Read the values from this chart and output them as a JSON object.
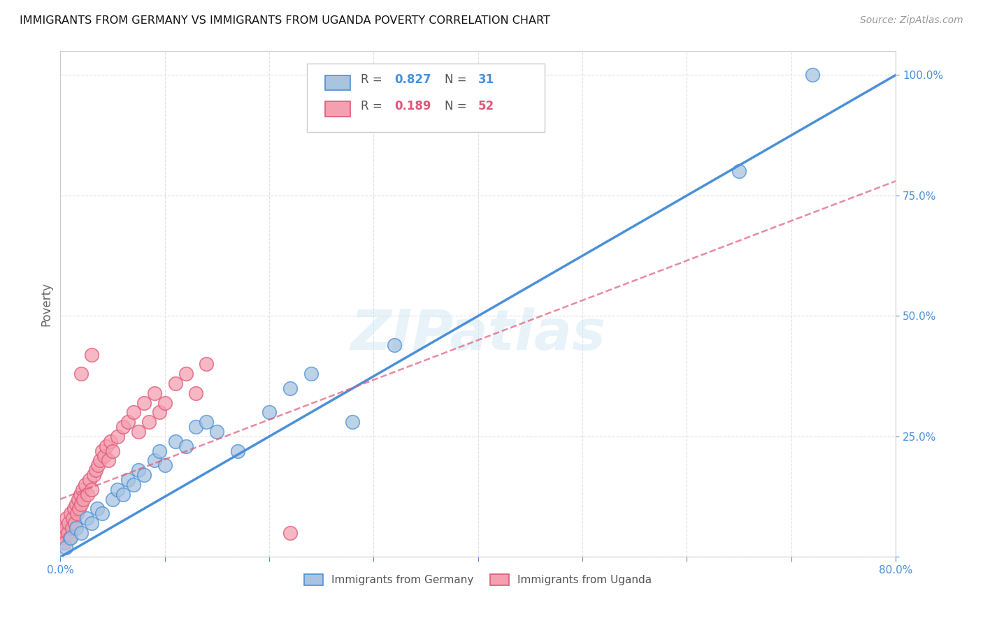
{
  "title": "IMMIGRANTS FROM GERMANY VS IMMIGRANTS FROM UGANDA POVERTY CORRELATION CHART",
  "source": "Source: ZipAtlas.com",
  "ylabel": "Poverty",
  "xlim": [
    0.0,
    0.8
  ],
  "ylim": [
    0.0,
    1.05
  ],
  "xticks": [
    0.0,
    0.1,
    0.2,
    0.3,
    0.4,
    0.5,
    0.6,
    0.7,
    0.8
  ],
  "xticklabels": [
    "0.0%",
    "",
    "",
    "",
    "",
    "",
    "",
    "",
    "80.0%"
  ],
  "ytick_positions": [
    0.0,
    0.25,
    0.5,
    0.75,
    1.0
  ],
  "yticklabels": [
    "",
    "25.0%",
    "50.0%",
    "75.0%",
    "100.0%"
  ],
  "germany_color": "#a8c4e0",
  "uganda_color": "#f4a0b0",
  "germany_line_color": "#4a90d9",
  "uganda_line_color": "#e05878",
  "germany_R": 0.827,
  "germany_N": 31,
  "uganda_R": 0.189,
  "uganda_N": 52,
  "watermark": "ZIPatlas",
  "background_color": "#ffffff",
  "grid_color": "#e0e0e0",
  "legend_label_germany": "Immigrants from Germany",
  "legend_label_uganda": "Immigrants from Uganda",
  "germany_line": [
    0.0,
    0.0,
    0.8,
    1.0
  ],
  "uganda_line": [
    0.0,
    0.12,
    0.8,
    0.78
  ],
  "germany_scatter_x": [
    0.005,
    0.01,
    0.015,
    0.02,
    0.025,
    0.03,
    0.035,
    0.04,
    0.05,
    0.055,
    0.06,
    0.065,
    0.07,
    0.075,
    0.08,
    0.09,
    0.095,
    0.1,
    0.11,
    0.12,
    0.13,
    0.14,
    0.15,
    0.17,
    0.2,
    0.22,
    0.24,
    0.28,
    0.32,
    0.65,
    0.72
  ],
  "germany_scatter_y": [
    0.02,
    0.04,
    0.06,
    0.05,
    0.08,
    0.07,
    0.1,
    0.09,
    0.12,
    0.14,
    0.13,
    0.16,
    0.15,
    0.18,
    0.17,
    0.2,
    0.22,
    0.19,
    0.24,
    0.23,
    0.27,
    0.28,
    0.26,
    0.22,
    0.3,
    0.35,
    0.38,
    0.28,
    0.44,
    0.8,
    1.0
  ],
  "uganda_scatter_x": [
    0.002,
    0.003,
    0.004,
    0.005,
    0.006,
    0.007,
    0.008,
    0.009,
    0.01,
    0.011,
    0.012,
    0.013,
    0.014,
    0.015,
    0.016,
    0.017,
    0.018,
    0.019,
    0.02,
    0.021,
    0.022,
    0.024,
    0.026,
    0.028,
    0.03,
    0.032,
    0.034,
    0.036,
    0.038,
    0.04,
    0.042,
    0.044,
    0.046,
    0.048,
    0.05,
    0.055,
    0.06,
    0.065,
    0.07,
    0.075,
    0.08,
    0.085,
    0.09,
    0.095,
    0.1,
    0.11,
    0.12,
    0.13,
    0.14,
    0.02,
    0.03,
    0.22
  ],
  "uganda_scatter_y": [
    0.04,
    0.05,
    0.03,
    0.06,
    0.08,
    0.05,
    0.07,
    0.04,
    0.09,
    0.06,
    0.08,
    0.1,
    0.07,
    0.11,
    0.09,
    0.12,
    0.1,
    0.13,
    0.11,
    0.14,
    0.12,
    0.15,
    0.13,
    0.16,
    0.14,
    0.17,
    0.18,
    0.19,
    0.2,
    0.22,
    0.21,
    0.23,
    0.2,
    0.24,
    0.22,
    0.25,
    0.27,
    0.28,
    0.3,
    0.26,
    0.32,
    0.28,
    0.34,
    0.3,
    0.32,
    0.36,
    0.38,
    0.34,
    0.4,
    0.38,
    0.42,
    0.05
  ]
}
